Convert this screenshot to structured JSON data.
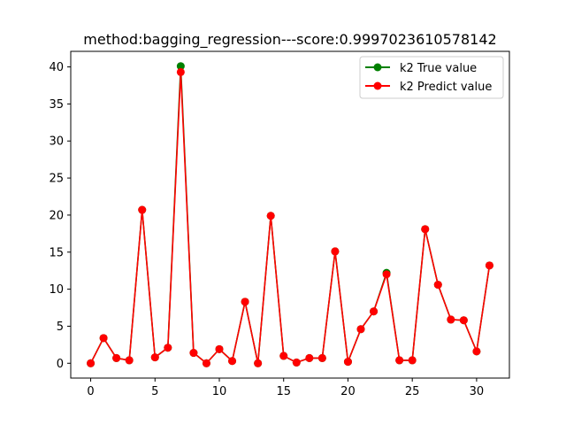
{
  "chart_data": {
    "type": "line",
    "title": "method:bagging_regression---score:0.9997023610578142",
    "xlabel": "",
    "ylabel": "",
    "xlim": [
      -1.55,
      32.55
    ],
    "ylim": [
      -2.0,
      42.1
    ],
    "x_ticks": [
      0,
      5,
      10,
      15,
      20,
      25,
      30
    ],
    "y_ticks": [
      0,
      5,
      10,
      15,
      20,
      25,
      30,
      35,
      40
    ],
    "grid": false,
    "legend_position": "top-right",
    "x": [
      0,
      1,
      2,
      3,
      4,
      5,
      6,
      7,
      8,
      9,
      10,
      11,
      12,
      13,
      14,
      15,
      16,
      17,
      18,
      19,
      20,
      21,
      22,
      23,
      24,
      25,
      26,
      27,
      28,
      29,
      30,
      31
    ],
    "series": [
      {
        "name": "k2 True value",
        "color": "#008000",
        "marker": "circle",
        "values": [
          0.0,
          3.4,
          0.7,
          0.4,
          20.7,
          0.8,
          2.1,
          40.1,
          1.4,
          0.0,
          1.9,
          0.3,
          8.3,
          0.0,
          19.9,
          1.0,
          0.1,
          0.7,
          0.7,
          15.1,
          0.2,
          4.6,
          7.0,
          12.2,
          0.4,
          0.4,
          18.1,
          10.6,
          5.9,
          5.8,
          1.6,
          13.2
        ]
      },
      {
        "name": "k2 Predict value",
        "color": "#ff0000",
        "marker": "circle",
        "values": [
          0.0,
          3.4,
          0.7,
          0.4,
          20.7,
          0.8,
          2.1,
          39.3,
          1.4,
          0.0,
          1.9,
          0.3,
          8.3,
          0.0,
          19.9,
          1.0,
          0.1,
          0.7,
          0.7,
          15.1,
          0.2,
          4.6,
          7.0,
          12.0,
          0.4,
          0.4,
          18.1,
          10.6,
          5.9,
          5.8,
          1.6,
          13.2
        ]
      }
    ]
  }
}
